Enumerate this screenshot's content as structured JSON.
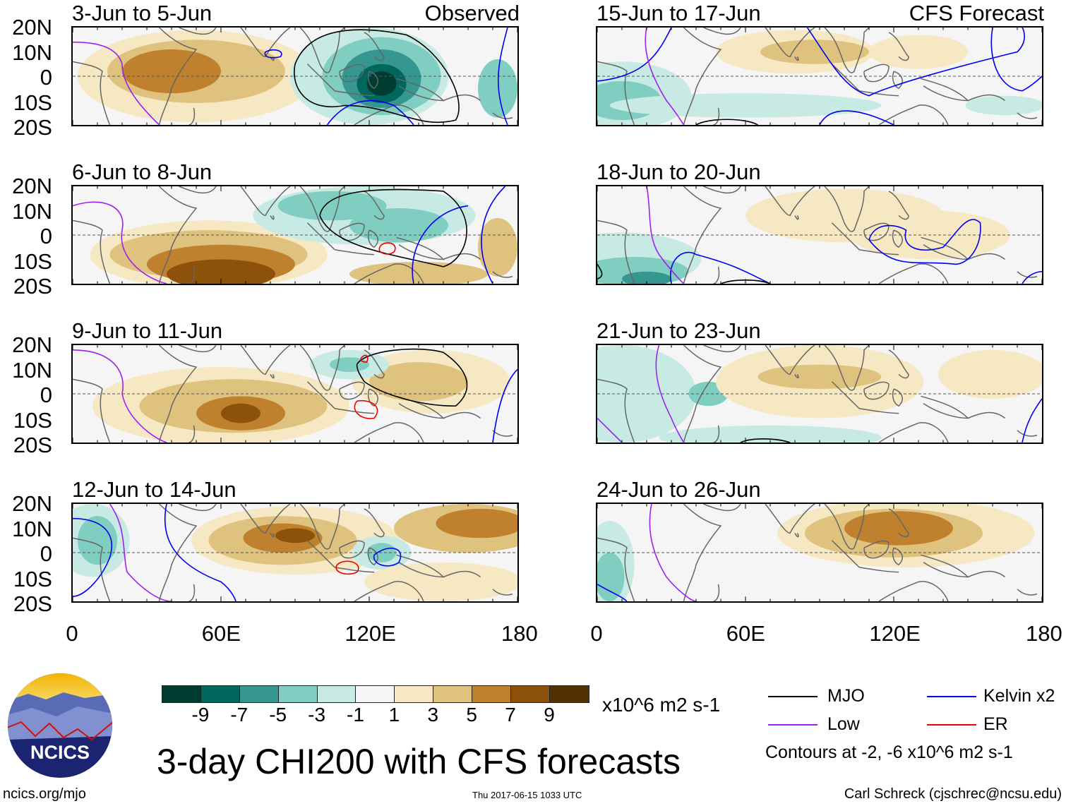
{
  "title": "3-day CHI200 with CFS forecasts",
  "units": "x10^6 m2 s-1",
  "left_header": "Observed",
  "right_header": "CFS Forecast",
  "panels_left": [
    {
      "title": "3-Jun to 5-Jun"
    },
    {
      "title": "6-Jun to 8-Jun"
    },
    {
      "title": "9-Jun to 11-Jun"
    },
    {
      "title": "12-Jun to 14-Jun"
    }
  ],
  "panels_right": [
    {
      "title": "15-Jun to 17-Jun"
    },
    {
      "title": "18-Jun to 20-Jun"
    },
    {
      "title": "21-Jun to 23-Jun"
    },
    {
      "title": "24-Jun to 26-Jun"
    }
  ],
  "y_ticks": [
    "20N",
    "10N",
    "0",
    "10S",
    "20S"
  ],
  "x_ticks": [
    "0",
    "60E",
    "120E",
    "180"
  ],
  "colorbar": {
    "colors": [
      "#003c30",
      "#01665e",
      "#35978f",
      "#80cdc1",
      "#c7eae5",
      "#f5f5f5",
      "#f6e8c3",
      "#dfc27d",
      "#bf812d",
      "#8c510a",
      "#543005"
    ],
    "labels": [
      "-9",
      "-7",
      "-5",
      "-3",
      "-1",
      "1",
      "3",
      "5",
      "7",
      "9"
    ]
  },
  "legend": {
    "items": [
      {
        "label": "MJO",
        "color": "#000000"
      },
      {
        "label": "Kelvin x2",
        "color": "#0000ee"
      },
      {
        "label": "Low",
        "color": "#a020f0"
      },
      {
        "label": "ER",
        "color": "#ee0000"
      }
    ],
    "note": "Contours at -2, -6 x10^6 m2 s-1"
  },
  "logo_text": "NCICS",
  "footer": {
    "url": "ncics.org/mjo",
    "timestamp": "Thu 2017-06-15 1033 UTC",
    "credit": "Carl Schreck (cjschrec@ncsu.edu)"
  }
}
